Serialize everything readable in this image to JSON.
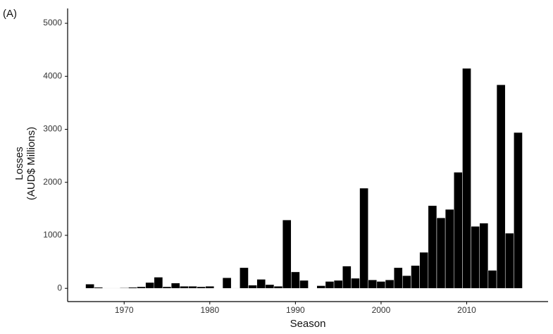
{
  "chart_data": {
    "type": "bar",
    "panel_label": "(A)",
    "xlabel": "Season",
    "ylabel": [
      "Losses",
      "(AUD$ Millions)"
    ],
    "x": [
      1966,
      1967,
      1968,
      1969,
      1970,
      1971,
      1972,
      1973,
      1974,
      1975,
      1976,
      1977,
      1978,
      1979,
      1980,
      1981,
      1982,
      1983,
      1984,
      1985,
      1986,
      1987,
      1988,
      1989,
      1990,
      1991,
      1992,
      1993,
      1994,
      1995,
      1996,
      1997,
      1998,
      1999,
      2000,
      2001,
      2002,
      2003,
      2004,
      2005,
      2006,
      2007,
      2008,
      2009,
      2010,
      2011,
      2012,
      2013,
      2014,
      2015,
      2016
    ],
    "values": [
      80,
      20,
      5,
      5,
      10,
      20,
      30,
      110,
      210,
      30,
      100,
      40,
      40,
      30,
      40,
      null,
      200,
      5,
      390,
      60,
      170,
      70,
      40,
      1290,
      310,
      150,
      null,
      50,
      130,
      150,
      420,
      190,
      1890,
      160,
      130,
      160,
      390,
      240,
      430,
      680,
      1560,
      1330,
      1490,
      2190,
      4150,
      1170,
      1230,
      340,
      3840,
      1040,
      2940
    ],
    "color": "#000000",
    "xlim": [
      1963.4,
      2019.5
    ],
    "xticks": [
      1970,
      1980,
      1990,
      2000,
      2010
    ],
    "ylim": [
      -250,
      5280
    ],
    "yticks": [
      0,
      1000,
      2000,
      3000,
      4000,
      5000
    ],
    "grid": false
  }
}
